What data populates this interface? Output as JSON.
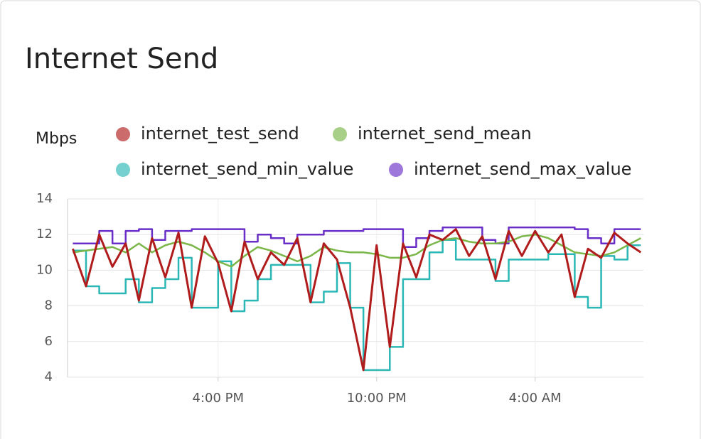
{
  "chart_data": {
    "type": "line",
    "title": "Internet Send",
    "y_label": "Mbps",
    "x": [
      10.5,
      11,
      11.5,
      12,
      12.5,
      13,
      13.5,
      14,
      14.5,
      15,
      15.5,
      16,
      16.5,
      17,
      17.5,
      18,
      18.5,
      19,
      19.5,
      20,
      20.5,
      21,
      21.5,
      22,
      22.5,
      23,
      23.5,
      24,
      24.5,
      25,
      25.5,
      26,
      26.5,
      27,
      27.5,
      28,
      28.5,
      29,
      29.5,
      30,
      30.5,
      31,
      31.5,
      32
    ],
    "xlim": [
      10.3,
      32.1
    ],
    "xticks": [
      {
        "value": 16,
        "label": "4:00 PM"
      },
      {
        "value": 22,
        "label": "10:00 PM"
      },
      {
        "value": 28,
        "label": "4:00 AM"
      }
    ],
    "ylim": [
      4,
      14
    ],
    "yticks": [
      4,
      6,
      8,
      10,
      12,
      14
    ],
    "grid": true,
    "series": [
      {
        "name": "internet_test_send",
        "color": "#b01c1c",
        "step": false,
        "values": [
          11.2,
          9.1,
          12.0,
          10.2,
          11.5,
          8.3,
          11.8,
          9.6,
          12.1,
          7.9,
          11.9,
          10.4,
          7.7,
          11.6,
          9.5,
          11.0,
          10.3,
          11.8,
          8.2,
          11.5,
          10.6,
          7.9,
          4.4,
          11.4,
          5.7,
          11.5,
          9.6,
          12.0,
          11.7,
          12.3,
          10.8,
          11.9,
          9.5,
          12.2,
          10.8,
          12.2,
          11.0,
          12.0,
          8.5,
          11.2,
          10.7,
          12.1,
          11.5,
          11.0
        ]
      },
      {
        "name": "internet_send_mean",
        "color": "#7ab648",
        "step": false,
        "values": [
          11.0,
          11.1,
          11.2,
          11.3,
          11.0,
          11.5,
          11.0,
          11.4,
          11.6,
          11.4,
          11.0,
          10.5,
          10.2,
          10.8,
          11.3,
          11.1,
          10.8,
          10.5,
          10.8,
          11.3,
          11.1,
          11.0,
          11.0,
          10.9,
          10.7,
          10.7,
          10.9,
          11.4,
          11.7,
          11.8,
          11.6,
          11.5,
          11.5,
          11.6,
          11.9,
          12.0,
          11.8,
          11.4,
          11.0,
          10.9,
          10.8,
          11.0,
          11.4,
          11.8
        ]
      },
      {
        "name": "internet_send_min_value",
        "color": "#2ab7b6",
        "step": true,
        "values": [
          11.1,
          9.1,
          8.7,
          8.7,
          9.5,
          8.2,
          9.0,
          9.5,
          10.7,
          7.9,
          7.9,
          10.5,
          7.7,
          8.3,
          9.5,
          10.3,
          10.3,
          10.3,
          8.2,
          8.8,
          10.4,
          7.9,
          4.4,
          4.4,
          5.7,
          9.5,
          9.5,
          11.0,
          11.7,
          10.6,
          10.6,
          10.6,
          9.4,
          10.6,
          10.6,
          10.6,
          10.9,
          10.9,
          8.5,
          7.9,
          10.8,
          10.6,
          11.4,
          11.4
        ]
      },
      {
        "name": "internet_send_max_value",
        "color": "#6a2ec8",
        "step": true,
        "values": [
          11.5,
          11.5,
          12.2,
          11.5,
          12.2,
          12.3,
          11.7,
          12.2,
          12.2,
          12.3,
          12.3,
          12.3,
          12.3,
          11.6,
          12.0,
          11.8,
          11.5,
          12.0,
          12.0,
          12.2,
          12.2,
          12.2,
          12.3,
          12.3,
          12.3,
          11.3,
          11.8,
          12.2,
          12.4,
          12.4,
          12.4,
          11.7,
          11.5,
          12.4,
          12.4,
          12.4,
          12.4,
          12.4,
          12.3,
          11.8,
          11.5,
          12.3,
          12.3,
          12.3
        ]
      }
    ]
  }
}
